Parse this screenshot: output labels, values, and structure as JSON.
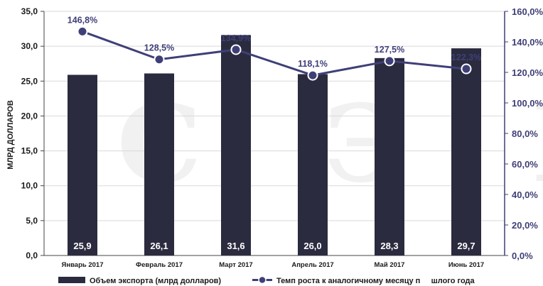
{
  "chart_data": {
    "type": "bar",
    "categories": [
      "Январь 2017",
      "Февраль 2017",
      "Март 2017",
      "Апрель 2017",
      "Май 2017",
      "Июнь 2017"
    ],
    "ylabel": "МЛРД ДОЛЛАРОВ",
    "ylim": [
      0,
      35
    ],
    "y_ticks": [
      "0,0",
      "5,0",
      "10,0",
      "15,0",
      "20,0",
      "25,0",
      "30,0",
      "35,0"
    ],
    "y2lim": [
      0,
      160
    ],
    "y2_ticks": [
      "0,0%",
      "20,0%",
      "40,0%",
      "60,0%",
      "80,0%",
      "100,0%",
      "120,0%",
      "140,0%",
      "160,0%"
    ],
    "series": [
      {
        "name": "Объем экспорта (млрд долларов)",
        "type": "bar",
        "axis": "left",
        "values": [
          25.9,
          26.1,
          31.6,
          26.0,
          28.3,
          29.7
        ],
        "labels": [
          "25,9",
          "26,1",
          "31,6",
          "26,0",
          "28,3",
          "29,7"
        ],
        "color": "#2b2b3f"
      },
      {
        "name": "Темп роста к аналогичному месяцу п     шлого года",
        "type": "line",
        "axis": "right",
        "values": [
          146.8,
          128.5,
          134.9,
          118.1,
          127.5,
          122.3
        ],
        "labels": [
          "146,8%",
          "128,5%",
          "134,9%",
          "118,1%",
          "127,5%",
          "122,3%"
        ],
        "color": "#3f3f78"
      }
    ],
    "legend_position": "bottom",
    "grid": true,
    "watermark_text": "I С Э I"
  }
}
